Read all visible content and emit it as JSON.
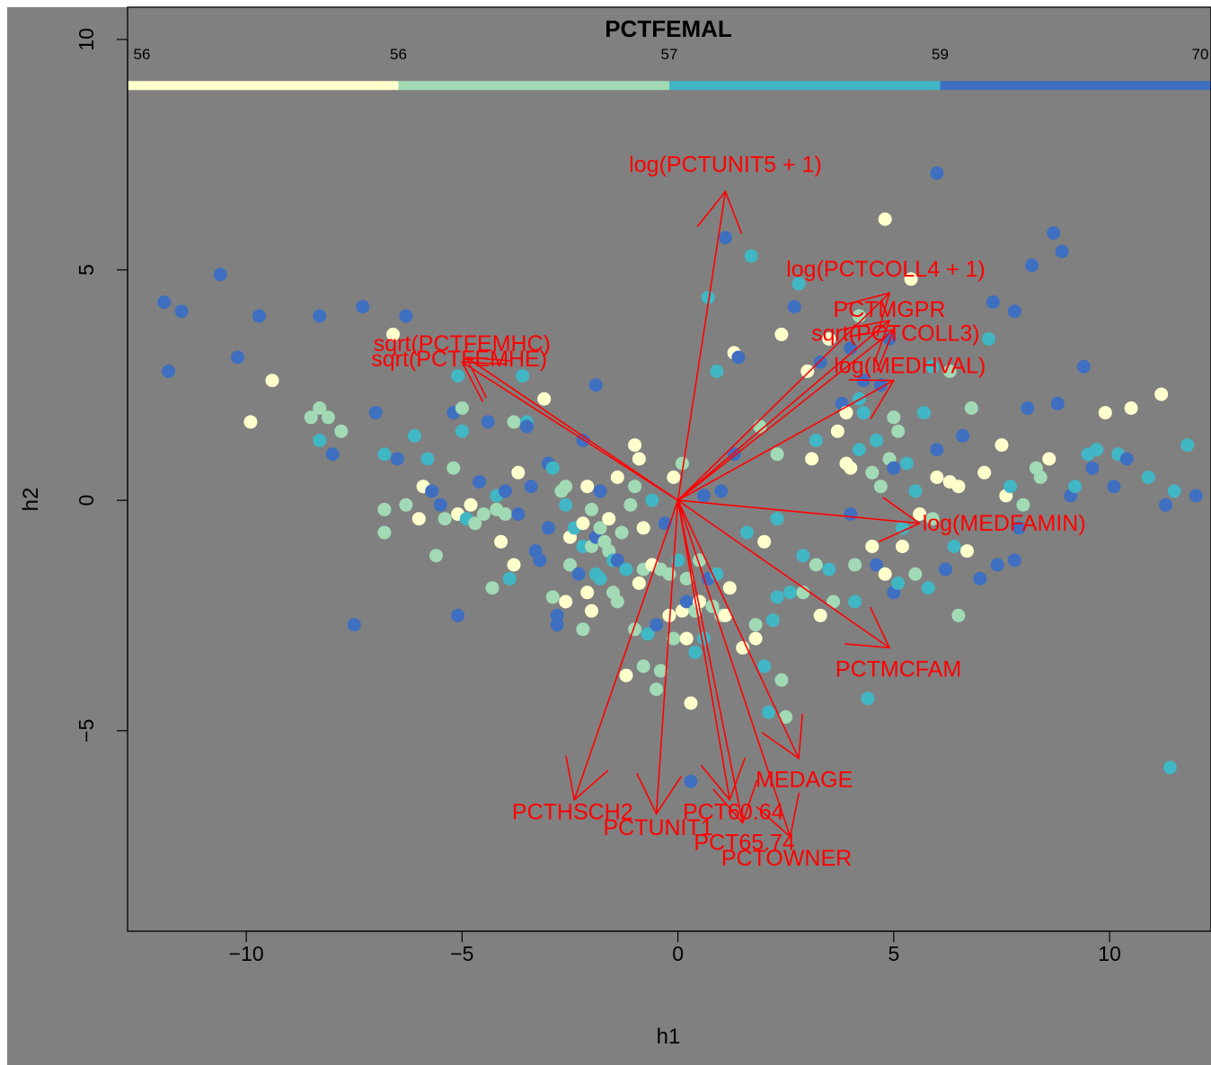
{
  "chart_data": {
    "type": "scatter",
    "title": "PCTFEMAL",
    "xlabel": "h1",
    "ylabel": "h2",
    "xlim": [
      -12.75,
      12.35
    ],
    "ylim": [
      -9.35,
      10.7
    ],
    "x_ticks": [
      -10,
      -5,
      0,
      5,
      10
    ],
    "x_tick_labels": [
      "−10",
      "−5",
      "0",
      "5",
      "10"
    ],
    "y_ticks": [
      -5,
      0,
      5,
      10
    ],
    "y_tick_labels": [
      "−5",
      "0",
      "5",
      "10"
    ],
    "background": "#808080",
    "color_bar": {
      "y": 9.0,
      "top_tick_labels": [
        "56",
        "56",
        "57",
        "59",
        "70"
      ],
      "segments": [
        {
          "from": -12.75,
          "to": -6.475,
          "color": "#FFFFCC"
        },
        {
          "from": -6.475,
          "to": -0.2,
          "color": "#A1DAB4"
        },
        {
          "from": -0.2,
          "to": 6.075,
          "color": "#41B6C4"
        },
        {
          "from": 6.075,
          "to": 12.35,
          "color": "#3E6FC0"
        }
      ]
    },
    "group_colors": [
      "#FFFFCC",
      "#A1DAB4",
      "#41B6C4",
      "#3E6FC0"
    ],
    "points": [
      [
        -11.9,
        4.3,
        3
      ],
      [
        -11.5,
        4.1,
        3
      ],
      [
        -11.8,
        2.8,
        3
      ],
      [
        -10.6,
        4.9,
        3
      ],
      [
        -10.2,
        3.1,
        3
      ],
      [
        -9.7,
        4.0,
        3
      ],
      [
        -9.4,
        2.6,
        0
      ],
      [
        -9.9,
        1.7,
        0
      ],
      [
        -8.5,
        1.8,
        1
      ],
      [
        -8.3,
        2.0,
        1
      ],
      [
        -8.3,
        4.0,
        3
      ],
      [
        -8.3,
        1.3,
        2
      ],
      [
        -8.0,
        1.0,
        3
      ],
      [
        -8.1,
        1.8,
        1
      ],
      [
        -7.8,
        1.5,
        1
      ],
      [
        -7.3,
        4.2,
        3
      ],
      [
        -7.5,
        -2.7,
        3
      ],
      [
        -7.0,
        1.9,
        3
      ],
      [
        -6.8,
        1.0,
        2
      ],
      [
        -6.5,
        0.9,
        3
      ],
      [
        -6.8,
        -0.2,
        1
      ],
      [
        -6.8,
        -0.7,
        1
      ],
      [
        -6.3,
        4.0,
        3
      ],
      [
        -6.6,
        3.6,
        0
      ],
      [
        -6.3,
        -0.1,
        1
      ],
      [
        -6.1,
        1.4,
        2
      ],
      [
        -6.0,
        -0.4,
        0
      ],
      [
        -5.8,
        0.9,
        2
      ],
      [
        -5.9,
        0.3,
        0
      ],
      [
        -5.7,
        0.2,
        3
      ],
      [
        -5.5,
        -0.1,
        3
      ],
      [
        -5.6,
        -1.2,
        1
      ],
      [
        -5.2,
        1.9,
        3
      ],
      [
        -5.4,
        -0.4,
        1
      ],
      [
        -5.1,
        2.7,
        2
      ],
      [
        -5.0,
        2.0,
        1
      ],
      [
        -5.0,
        1.5,
        2
      ],
      [
        -5.1,
        -0.3,
        0
      ],
      [
        -5.2,
        0.7,
        1
      ],
      [
        -4.9,
        -0.4,
        2
      ],
      [
        -4.8,
        -0.1,
        0
      ],
      [
        -5.1,
        -2.5,
        3
      ],
      [
        -4.7,
        -0.5,
        1
      ],
      [
        -4.6,
        0.4,
        3
      ],
      [
        -4.5,
        -0.3,
        1
      ],
      [
        -4.4,
        1.7,
        3
      ],
      [
        -4.3,
        -1.9,
        1
      ],
      [
        -4.2,
        0.1,
        2
      ],
      [
        -4.2,
        -0.2,
        1
      ],
      [
        -4.1,
        -0.9,
        0
      ],
      [
        -4.0,
        0.2,
        3
      ],
      [
        -4.0,
        -0.3,
        1
      ],
      [
        -3.9,
        -1.7,
        2
      ],
      [
        -3.8,
        1.7,
        1
      ],
      [
        -3.8,
        -1.4,
        0
      ],
      [
        -3.7,
        0.6,
        0
      ],
      [
        -3.7,
        -0.3,
        3
      ],
      [
        -3.6,
        2.7,
        2
      ],
      [
        -3.5,
        1.7,
        2
      ],
      [
        -3.5,
        1.6,
        3
      ],
      [
        -3.4,
        0.3,
        3
      ],
      [
        -3.3,
        -1.1,
        3
      ],
      [
        -3.2,
        -1.3,
        3
      ],
      [
        -3.1,
        2.2,
        0
      ],
      [
        -3.0,
        0.8,
        3
      ],
      [
        -3.0,
        -0.6,
        3
      ],
      [
        -2.9,
        0.7,
        2
      ],
      [
        -2.9,
        -2.1,
        1
      ],
      [
        -2.8,
        -2.5,
        3
      ],
      [
        -2.8,
        -2.7,
        3
      ],
      [
        -2.7,
        0.2,
        1
      ],
      [
        -2.6,
        -2.2,
        0
      ],
      [
        -2.6,
        -0.1,
        2
      ],
      [
        -2.6,
        0.3,
        1
      ],
      [
        -2.5,
        -0.8,
        0
      ],
      [
        -2.5,
        -1.4,
        1
      ],
      [
        -2.4,
        -0.6,
        2
      ],
      [
        -2.3,
        -1.6,
        3
      ],
      [
        -2.2,
        -0.5,
        0
      ],
      [
        -2.2,
        -1.0,
        2
      ],
      [
        -2.2,
        1.3,
        3
      ],
      [
        -2.2,
        -2.8,
        1
      ],
      [
        -2.1,
        0.3,
        0
      ],
      [
        -2.1,
        -2.0,
        0
      ],
      [
        -2.0,
        -0.2,
        1
      ],
      [
        -2.0,
        -1.0,
        1
      ],
      [
        -2.0,
        -2.4,
        0
      ],
      [
        -1.9,
        2.5,
        3
      ],
      [
        -1.9,
        -0.8,
        3
      ],
      [
        -1.9,
        -1.6,
        2
      ],
      [
        -1.8,
        -0.6,
        1
      ],
      [
        -1.8,
        -1.7,
        2
      ],
      [
        -1.8,
        0.2,
        3
      ],
      [
        -1.7,
        -0.9,
        1
      ],
      [
        -1.6,
        -0.4,
        0
      ],
      [
        -1.6,
        -1.1,
        1
      ],
      [
        -1.5,
        -1.3,
        2
      ],
      [
        -1.5,
        -2.0,
        1
      ],
      [
        -1.4,
        0.5,
        0
      ],
      [
        -1.4,
        -1.3,
        3
      ],
      [
        -1.4,
        -2.2,
        1
      ],
      [
        -1.3,
        -0.7,
        1
      ],
      [
        -1.2,
        -1.5,
        2
      ],
      [
        -1.2,
        -3.8,
        0
      ],
      [
        -1.1,
        -0.1,
        1
      ],
      [
        -1.0,
        0.3,
        1
      ],
      [
        -1.0,
        1.2,
        0
      ],
      [
        -1.0,
        -2.8,
        1
      ],
      [
        -0.9,
        0.9,
        0
      ],
      [
        -0.9,
        -1.8,
        0
      ],
      [
        -0.8,
        -0.6,
        0
      ],
      [
        -0.8,
        -1.5,
        1
      ],
      [
        -0.8,
        -3.6,
        1
      ],
      [
        -0.7,
        -2.9,
        2
      ],
      [
        -0.6,
        0.0,
        2
      ],
      [
        -0.6,
        -1.4,
        0
      ],
      [
        -0.5,
        -2.7,
        3
      ],
      [
        -0.5,
        -4.1,
        1
      ],
      [
        -0.4,
        -1.5,
        1
      ],
      [
        -0.4,
        -3.7,
        1
      ],
      [
        -0.3,
        -0.5,
        3
      ],
      [
        -0.2,
        -1.6,
        1
      ],
      [
        -0.2,
        -2.5,
        0
      ],
      [
        -0.1,
        -3.0,
        1
      ],
      [
        -0.1,
        0.5,
        0
      ],
      [
        0.0,
        -1.3,
        2
      ],
      [
        0.1,
        0.8,
        1
      ],
      [
        0.1,
        -2.4,
        0
      ],
      [
        0.2,
        -1.7,
        1
      ],
      [
        0.2,
        -2.2,
        3
      ],
      [
        0.2,
        -3.0,
        0
      ],
      [
        0.3,
        -4.4,
        0
      ],
      [
        0.3,
        -6.1,
        3
      ],
      [
        0.4,
        -2.4,
        1
      ],
      [
        0.4,
        -3.3,
        2
      ],
      [
        0.5,
        -1.3,
        1
      ],
      [
        0.5,
        -2.2,
        0
      ],
      [
        0.6,
        -3.0,
        2
      ],
      [
        0.6,
        0.1,
        3
      ],
      [
        0.7,
        -1.7,
        3
      ],
      [
        0.7,
        4.4,
        2
      ],
      [
        0.8,
        -2.3,
        1
      ],
      [
        0.9,
        2.8,
        2
      ],
      [
        0.9,
        -1.6,
        2
      ],
      [
        1.0,
        0.2,
        3
      ],
      [
        1.0,
        -2.5,
        1
      ],
      [
        1.1,
        -2.5,
        0
      ],
      [
        1.1,
        5.7,
        3
      ],
      [
        1.2,
        -1.9,
        0
      ],
      [
        1.3,
        3.2,
        0
      ],
      [
        1.3,
        1.0,
        3
      ],
      [
        1.4,
        3.1,
        3
      ],
      [
        1.5,
        -3.2,
        0
      ],
      [
        1.6,
        -0.7,
        2
      ],
      [
        1.7,
        5.3,
        2
      ],
      [
        1.8,
        -2.7,
        1
      ],
      [
        1.8,
        -3.0,
        0
      ],
      [
        1.9,
        1.6,
        1
      ],
      [
        2.0,
        -0.9,
        0
      ],
      [
        2.0,
        -3.6,
        2
      ],
      [
        2.1,
        -4.6,
        2
      ],
      [
        2.2,
        -2.6,
        2
      ],
      [
        2.3,
        -2.1,
        2
      ],
      [
        2.3,
        1.0,
        1
      ],
      [
        2.3,
        -0.4,
        2
      ],
      [
        2.4,
        -3.9,
        1
      ],
      [
        2.4,
        3.6,
        0
      ],
      [
        2.5,
        -4.7,
        1
      ],
      [
        2.6,
        -2.0,
        2
      ],
      [
        2.7,
        4.2,
        3
      ],
      [
        2.8,
        4.7,
        2
      ],
      [
        2.9,
        -1.2,
        2
      ],
      [
        2.9,
        -2.0,
        1
      ],
      [
        3.0,
        2.8,
        0
      ],
      [
        3.1,
        0.9,
        0
      ],
      [
        3.2,
        -1.4,
        1
      ],
      [
        3.2,
        1.3,
        2
      ],
      [
        3.3,
        -2.5,
        0
      ],
      [
        3.3,
        3.0,
        3
      ],
      [
        3.5,
        -1.5,
        2
      ],
      [
        3.5,
        3.5,
        0
      ],
      [
        3.6,
        -2.2,
        1
      ],
      [
        3.7,
        1.5,
        0
      ],
      [
        3.8,
        2.1,
        3
      ],
      [
        3.9,
        1.9,
        0
      ],
      [
        3.9,
        0.8,
        0
      ],
      [
        4.0,
        3.3,
        3
      ],
      [
        4.0,
        0.7,
        0
      ],
      [
        4.0,
        -0.3,
        3
      ],
      [
        4.1,
        -1.4,
        1
      ],
      [
        4.1,
        -2.2,
        2
      ],
      [
        4.2,
        4.0,
        1
      ],
      [
        4.2,
        2.2,
        2
      ],
      [
        4.2,
        1.1,
        2
      ],
      [
        4.3,
        2.6,
        3
      ],
      [
        4.3,
        1.9,
        2
      ],
      [
        4.4,
        -4.3,
        2
      ],
      [
        4.5,
        0.6,
        1
      ],
      [
        4.5,
        -1.0,
        0
      ],
      [
        4.6,
        1.3,
        2
      ],
      [
        4.6,
        -1.4,
        3
      ],
      [
        4.7,
        2.5,
        3
      ],
      [
        4.7,
        0.3,
        1
      ],
      [
        4.8,
        -1.6,
        0
      ],
      [
        4.8,
        6.1,
        0
      ],
      [
        4.9,
        3.5,
        3
      ],
      [
        4.9,
        0.9,
        1
      ],
      [
        5.0,
        -2.0,
        3
      ],
      [
        5.0,
        1.8,
        1
      ],
      [
        5.0,
        0.7,
        3
      ],
      [
        5.1,
        -1.8,
        2
      ],
      [
        5.1,
        1.5,
        1
      ],
      [
        5.2,
        -0.6,
        2
      ],
      [
        5.2,
        -1.0,
        0
      ],
      [
        5.3,
        0.8,
        2
      ],
      [
        5.4,
        4.8,
        0
      ],
      [
        5.5,
        -1.6,
        1
      ],
      [
        5.5,
        0.2,
        2
      ],
      [
        5.6,
        -0.3,
        0
      ],
      [
        5.7,
        1.9,
        2
      ],
      [
        5.8,
        -1.9,
        2
      ],
      [
        5.9,
        -0.4,
        1
      ],
      [
        5.9,
        2.9,
        2
      ],
      [
        6.0,
        7.1,
        3
      ],
      [
        6.0,
        0.5,
        0
      ],
      [
        6.0,
        1.1,
        3
      ],
      [
        6.2,
        -1.5,
        3
      ],
      [
        6.3,
        2.8,
        1
      ],
      [
        6.3,
        0.4,
        0
      ],
      [
        6.4,
        -1.0,
        2
      ],
      [
        6.5,
        0.3,
        0
      ],
      [
        6.5,
        -2.5,
        1
      ],
      [
        6.6,
        1.4,
        3
      ],
      [
        6.7,
        -1.1,
        0
      ],
      [
        6.8,
        2.0,
        1
      ],
      [
        7.0,
        -1.7,
        3
      ],
      [
        7.1,
        0.6,
        0
      ],
      [
        7.2,
        3.5,
        2
      ],
      [
        7.3,
        4.3,
        3
      ],
      [
        7.4,
        -1.4,
        3
      ],
      [
        7.5,
        1.2,
        0
      ],
      [
        7.6,
        0.1,
        0
      ],
      [
        7.7,
        0.3,
        2
      ],
      [
        7.8,
        -1.3,
        3
      ],
      [
        7.8,
        4.1,
        3
      ],
      [
        7.9,
        -0.6,
        3
      ],
      [
        8.0,
        -0.1,
        1
      ],
      [
        8.1,
        2.0,
        3
      ],
      [
        8.2,
        5.1,
        3
      ],
      [
        8.3,
        0.7,
        1
      ],
      [
        8.4,
        0.5,
        1
      ],
      [
        8.6,
        0.9,
        0
      ],
      [
        8.7,
        5.8,
        3
      ],
      [
        8.8,
        2.1,
        3
      ],
      [
        8.9,
        5.4,
        3
      ],
      [
        9.1,
        0.1,
        3
      ],
      [
        9.2,
        0.3,
        2
      ],
      [
        9.4,
        2.9,
        3
      ],
      [
        9.5,
        1.0,
        2
      ],
      [
        9.6,
        0.7,
        3
      ],
      [
        9.7,
        1.1,
        2
      ],
      [
        9.9,
        1.9,
        0
      ],
      [
        10.1,
        0.3,
        3
      ],
      [
        10.2,
        1.0,
        2
      ],
      [
        10.4,
        0.9,
        3
      ],
      [
        10.5,
        2.0,
        0
      ],
      [
        10.9,
        0.5,
        2
      ],
      [
        11.2,
        2.3,
        0
      ],
      [
        11.3,
        -0.1,
        3
      ],
      [
        11.5,
        0.2,
        2
      ],
      [
        11.8,
        1.2,
        2
      ],
      [
        12.0,
        0.1,
        3
      ],
      [
        11.4,
        -5.8,
        2
      ]
    ],
    "vectors": [
      {
        "label": "log(PCTUNIT5 + 1)",
        "x": 1.1,
        "y": 6.7
      },
      {
        "label": "log(PCTCOLL4 + 1)",
        "x": 4.9,
        "y": 4.5
      },
      {
        "label": "PCTMGPR",
        "x": 4.9,
        "y": 3.9
      },
      {
        "label": "sqrt(PCTCOLL3)",
        "x": 5.0,
        "y": 3.7
      },
      {
        "label": "log(MEDHVAL)",
        "x": 5.0,
        "y": 2.6
      },
      {
        "label": "log(MEDFAMIN)",
        "x": 5.6,
        "y": -0.5
      },
      {
        "label": "PCTMCFAM",
        "x": 4.9,
        "y": -3.2
      },
      {
        "label": "MEDAGE",
        "x": 2.8,
        "y": -5.6
      },
      {
        "label": "PCT60.64",
        "x": 1.2,
        "y": -6.5
      },
      {
        "label": "PCT65.74",
        "x": 1.5,
        "y": -7.0
      },
      {
        "label": "PCTOWNER",
        "x": 2.6,
        "y": -7.3
      },
      {
        "label": "PCTUNIT1",
        "x": -0.5,
        "y": -6.8
      },
      {
        "label": "PCTHSCH2",
        "x": -2.4,
        "y": -6.5
      },
      {
        "label": "sqrt(PCTFEMHC)",
        "x": -5.0,
        "y": 3.0
      },
      {
        "label": "sqrt(PCTFEMHE)",
        "x": -4.9,
        "y": 3.1
      }
    ]
  }
}
